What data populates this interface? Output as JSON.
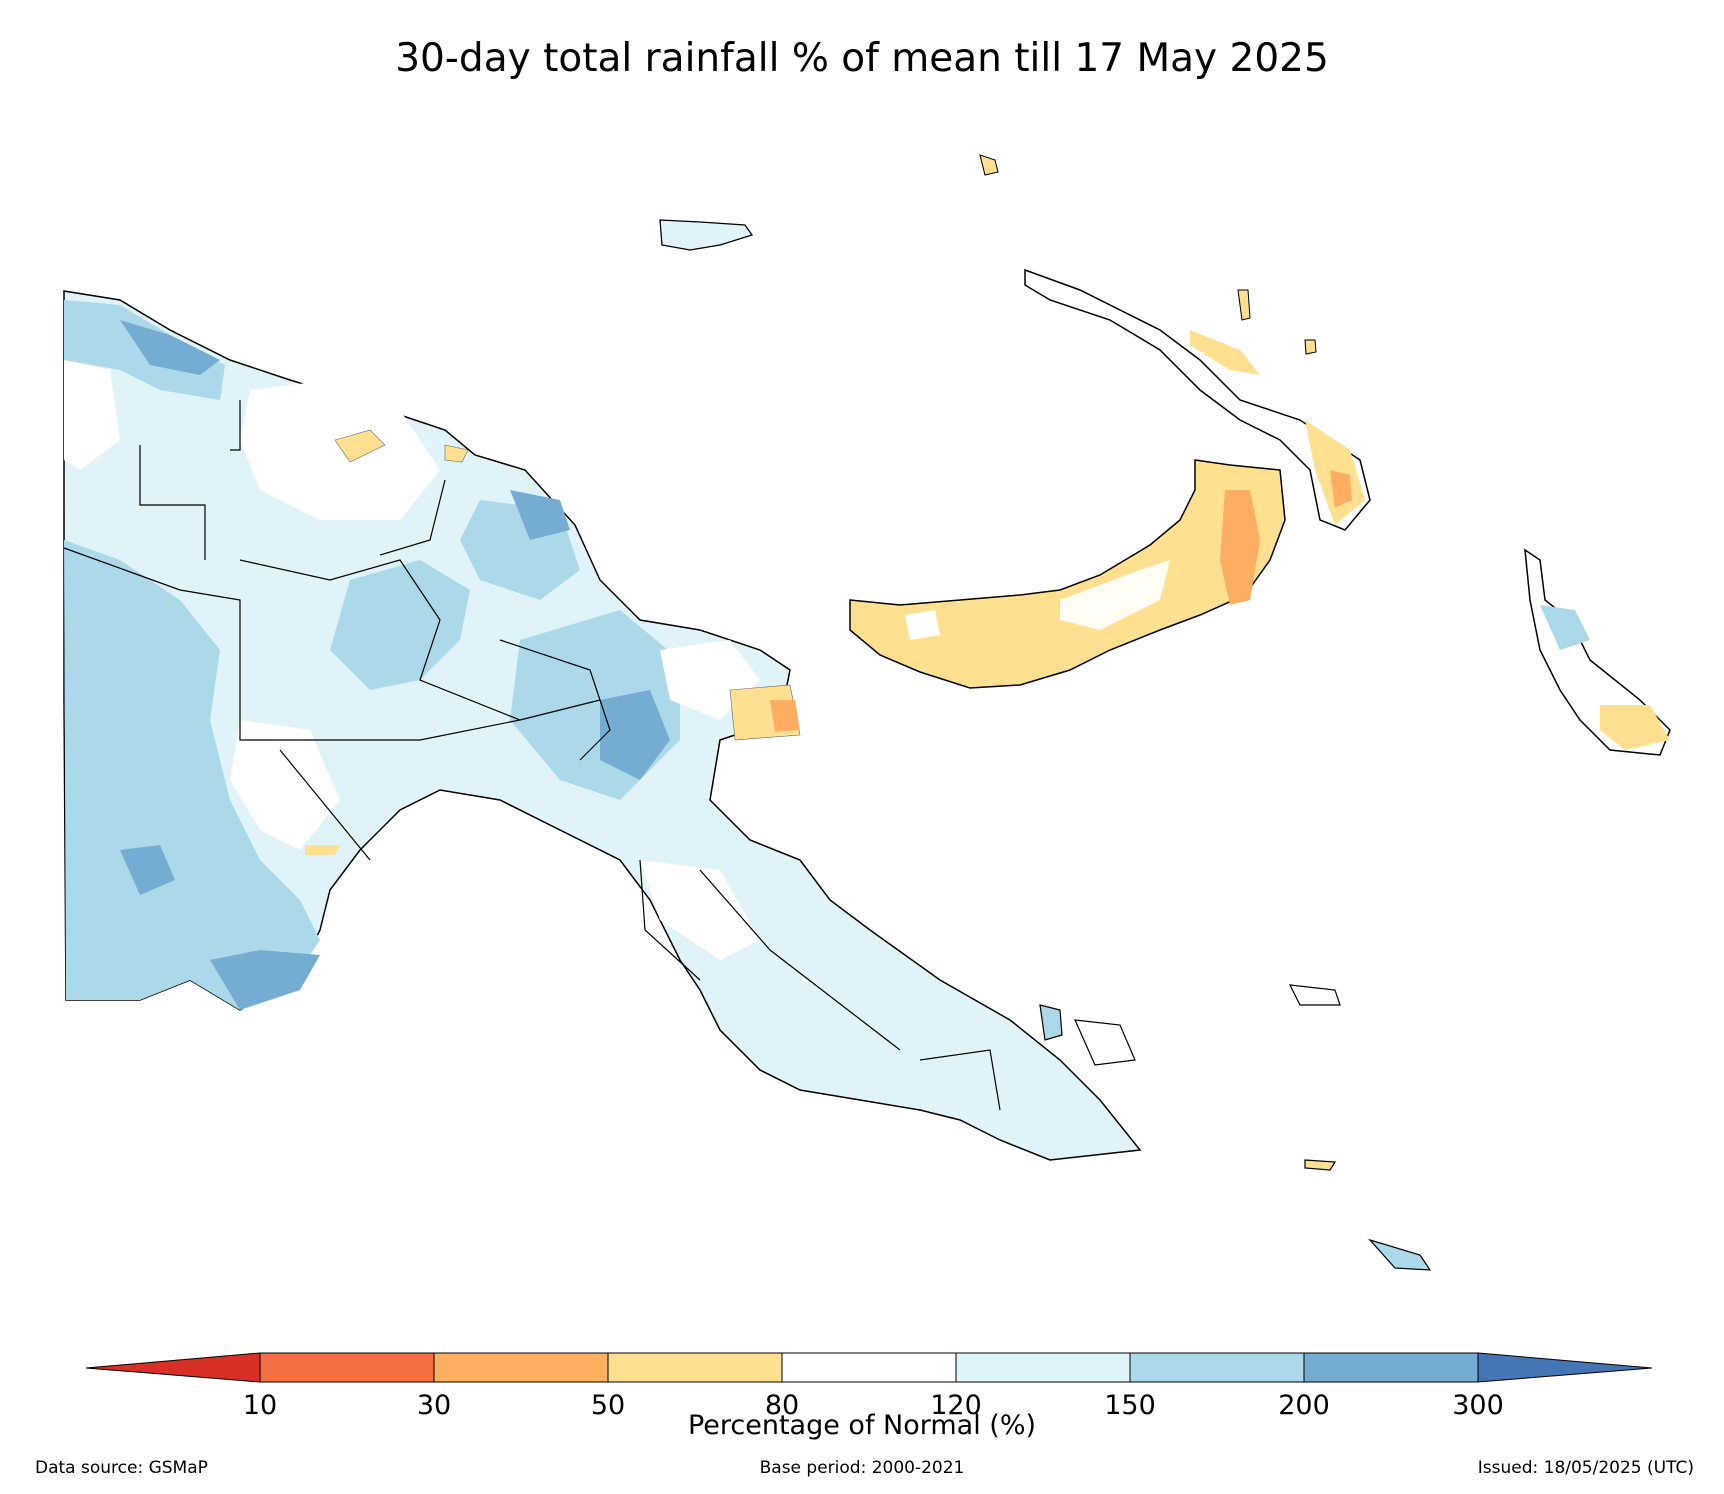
{
  "title": "30-day total rainfall % of mean till 17 May 2025",
  "colorbar": {
    "label": "Percentage of Normal (%)",
    "ticks": [
      "10",
      "30",
      "50",
      "80",
      "120",
      "150",
      "200",
      "300"
    ],
    "bins": [
      {
        "range": "<10",
        "color": "#d73027"
      },
      {
        "range": "10-30",
        "color": "#f46d43"
      },
      {
        "range": "30-50",
        "color": "#fdae61"
      },
      {
        "range": "50-80",
        "color": "#fee090"
      },
      {
        "range": "80-120",
        "color": "#ffffff"
      },
      {
        "range": "120-150",
        "color": "#e0f3f8"
      },
      {
        "range": "150-200",
        "color": "#abd9e9"
      },
      {
        "range": "200-300",
        "color": "#74add1"
      },
      {
        "range": ">300",
        "color": "#4575b4"
      }
    ]
  },
  "footer": {
    "data_source": "Data source: GSMaP",
    "base_period": "Base period: 2000-2021",
    "issued": "Issued: 18/05/2025 (UTC)"
  }
}
